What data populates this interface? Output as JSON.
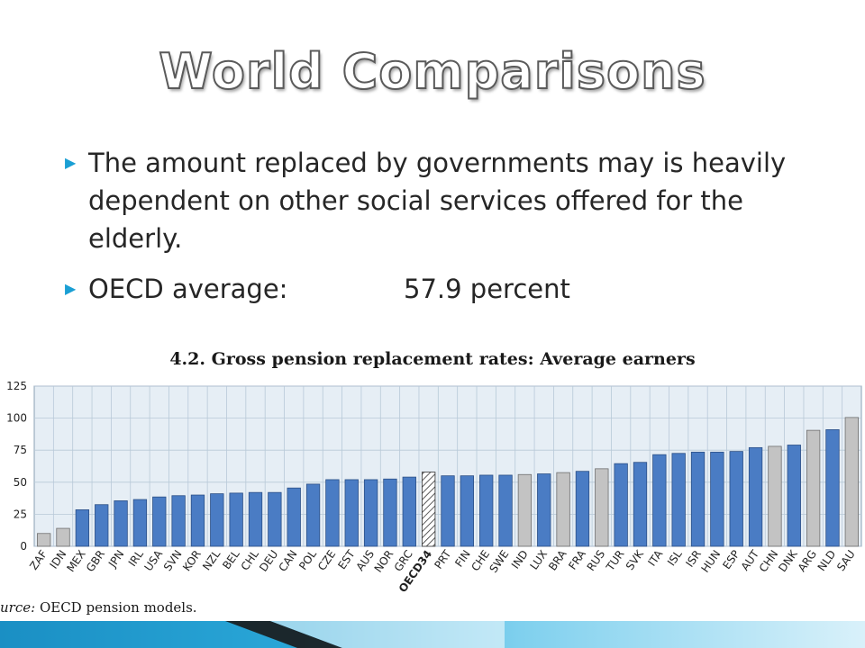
{
  "slide": {
    "title": "World Comparisons",
    "bullets": [
      "The amount replaced by governments may is heavily dependent on other social services offered for the elderly."
    ],
    "average_label": "OECD average:",
    "average_value": "57.9 percent",
    "source_label": "urce:",
    "source_text": "OECD pension models."
  },
  "colors": {
    "oecd_bar": "#4a7cc4",
    "non_oecd_bar": "#c3c3c3",
    "plot_bg": "#e6eef5",
    "grid": "#b8c9d8",
    "bullet_marker": "#1a9fd4"
  },
  "chart_data": {
    "type": "bar",
    "title": "4.2. Gross pension replacement rates: Average earners",
    "ylim": [
      0,
      125
    ],
    "yticks": [
      0,
      25,
      50,
      75,
      100,
      125
    ],
    "grid": true,
    "categories": [
      "ZAF",
      "IDN",
      "MEX",
      "GBR",
      "JPN",
      "IRL",
      "USA",
      "SVN",
      "KOR",
      "NZL",
      "BEL",
      "CHL",
      "DEU",
      "CAN",
      "POL",
      "CZE",
      "EST",
      "AUS",
      "NOR",
      "GRC",
      "OECD34",
      "PRT",
      "FIN",
      "CHE",
      "SWE",
      "IND",
      "LUX",
      "BRA",
      "FRA",
      "RUS",
      "TUR",
      "SVK",
      "ITA",
      "ISL",
      "ISR",
      "HUN",
      "ESP",
      "AUT",
      "CHN",
      "DNK",
      "ARG",
      "NLD",
      "SAU"
    ],
    "values": [
      10,
      14,
      28.5,
      32.5,
      35.5,
      36.5,
      38.5,
      39.5,
      40,
      41,
      41.5,
      42,
      42,
      45.5,
      48.5,
      52,
      52,
      52,
      52.5,
      54,
      57.9,
      55,
      55,
      55.5,
      55.5,
      56,
      56.5,
      57.5,
      58.5,
      60.5,
      64.5,
      65.5,
      71.5,
      72.5,
      73.5,
      73.5,
      74,
      77,
      78,
      79,
      90.5,
      91,
      100.5
    ],
    "group": [
      "non-oecd",
      "non-oecd",
      "oecd",
      "oecd",
      "oecd",
      "oecd",
      "oecd",
      "oecd",
      "oecd",
      "oecd",
      "oecd",
      "oecd",
      "oecd",
      "oecd",
      "oecd",
      "oecd",
      "oecd",
      "oecd",
      "oecd",
      "oecd",
      "average",
      "oecd",
      "oecd",
      "oecd",
      "oecd",
      "non-oecd",
      "oecd",
      "non-oecd",
      "oecd",
      "non-oecd",
      "oecd",
      "oecd",
      "oecd",
      "oecd",
      "oecd",
      "oecd",
      "oecd",
      "oecd",
      "non-oecd",
      "oecd",
      "non-oecd",
      "oecd",
      "non-oecd"
    ]
  }
}
